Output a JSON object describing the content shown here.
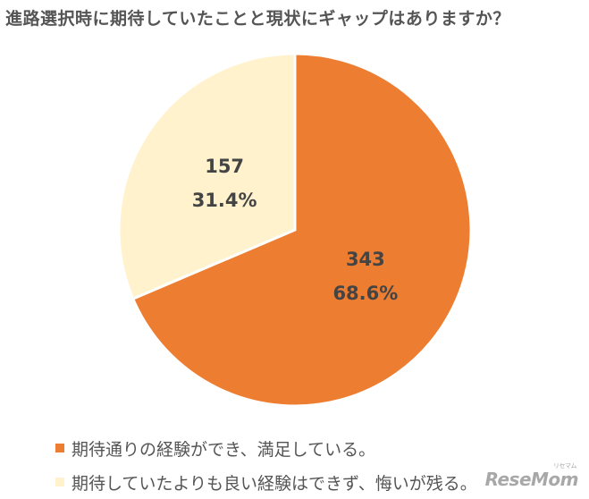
{
  "chart_data": {
    "type": "pie",
    "title": "進路選択時に期待していたことと現状にギャップはありますか？",
    "slices": [
      {
        "label": "期待通りの経験ができ、満足している。",
        "value": 343,
        "percent_label": "68.6%",
        "color": "#ED7D31"
      },
      {
        "label": "期待していたよりも良い経験はできず、悔いが残る。",
        "value": 157,
        "percent_label": "31.4%",
        "color": "#FFF2CC"
      }
    ],
    "legend_position": "bottom-left"
  },
  "watermark": {
    "text": "ReseMom",
    "sub": "リセマム"
  }
}
